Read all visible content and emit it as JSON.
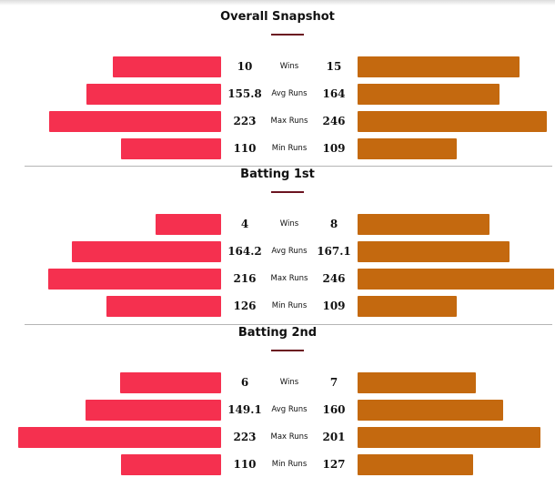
{
  "chart_data": {
    "type": "bar",
    "sections": [
      {
        "title": "Overall Snapshot",
        "rows": [
          {
            "metric": "Wins",
            "left_label": "10",
            "right_label": "15",
            "left": 10,
            "right": 15,
            "max": 17.5
          },
          {
            "metric": "Avg Runs",
            "left_label": "155.8",
            "right_label": "164",
            "left": 155.8,
            "right": 164,
            "max": 219
          },
          {
            "metric": "Max Runs",
            "left_label": "223",
            "right_label": "246",
            "left": 223,
            "right": 246,
            "max": 246
          },
          {
            "metric": "Min Runs",
            "left_label": "110",
            "right_label": "109",
            "left": 110,
            "right": 109,
            "max": 208
          }
        ]
      },
      {
        "title": "Batting 1st",
        "rows": [
          {
            "metric": "Wins",
            "left_label": "4",
            "right_label": "8",
            "left": 4,
            "right": 8,
            "max": 11.5
          },
          {
            "metric": "Avg Runs",
            "left_label": "164.2",
            "right_label": "167.1",
            "left": 164.2,
            "right": 167.1,
            "max": 208
          },
          {
            "metric": "Max Runs",
            "left_label": "216",
            "right_label": "246",
            "left": 216,
            "right": 246,
            "max": 237
          },
          {
            "metric": "Min Runs",
            "left_label": "126",
            "right_label": "109",
            "left": 126,
            "right": 109,
            "max": 208
          }
        ]
      },
      {
        "title": "Batting 2nd",
        "rows": [
          {
            "metric": "Wins",
            "left_label": "6",
            "right_label": "7",
            "left": 6,
            "right": 7,
            "max": 11.2
          },
          {
            "metric": "Avg Runs",
            "left_label": "149.1",
            "right_label": "160",
            "left": 149.1,
            "right": 160,
            "max": 208
          },
          {
            "metric": "Max Runs",
            "left_label": "223",
            "right_label": "201",
            "left": 223,
            "right": 201,
            "max": 208
          },
          {
            "metric": "Min Runs",
            "left_label": "110",
            "right_label": "127",
            "left": 110,
            "right": 127,
            "max": 208
          }
        ]
      }
    ],
    "colors": {
      "left": "#f5304f",
      "right": "#c4690f"
    }
  }
}
